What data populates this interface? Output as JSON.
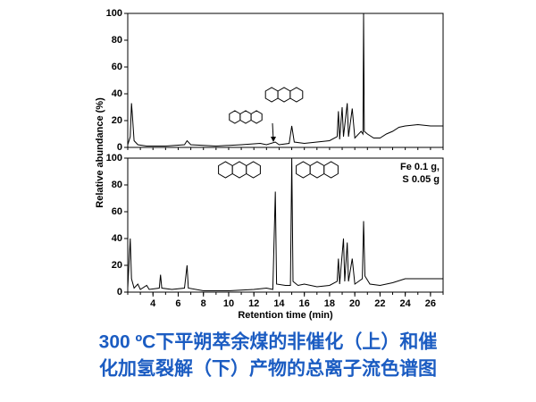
{
  "chart_data": [
    {
      "type": "line",
      "ylabel": "Relative abundance (%)",
      "x": [
        2.0,
        2.2,
        2.3,
        2.4,
        2.5,
        2.8,
        3.5,
        5.0,
        6.5,
        6.7,
        7.0,
        9.0,
        11.0,
        12.5,
        13.0,
        13.7,
        14.0,
        14.8,
        15.0,
        15.2,
        16.0,
        17.0,
        18.0,
        18.6,
        18.7,
        18.8,
        19.0,
        19.1,
        19.4,
        19.5,
        19.8,
        20.0,
        20.5,
        20.65,
        20.7,
        20.75,
        21.0,
        21.5,
        22.0,
        22.5,
        23.0,
        23.5,
        24.0,
        25.0,
        26.0,
        27.0
      ],
      "values": [
        2,
        8,
        33,
        20,
        5,
        2,
        1,
        1,
        2,
        5,
        2,
        1,
        2,
        3,
        2,
        4,
        2,
        3,
        16,
        4,
        3,
        4,
        5,
        8,
        27,
        6,
        30,
        8,
        33,
        8,
        29,
        7,
        12,
        10,
        100,
        12,
        10,
        7,
        7,
        10,
        12,
        15,
        16,
        17,
        16,
        16
      ],
      "color": "#000000",
      "xlim": [
        2,
        27
      ],
      "ylim": [
        0,
        100
      ],
      "yticks": [
        0,
        20,
        40,
        60,
        80,
        100
      ]
    },
    {
      "type": "line",
      "xlabel": "Retention time (min)",
      "annotations": [
        "Fe 0.1 g,",
        "S 0.05 g"
      ],
      "x": [
        2.0,
        2.2,
        2.3,
        2.5,
        2.8,
        3.0,
        3.5,
        3.7,
        4.5,
        4.6,
        4.7,
        5.5,
        6.5,
        6.7,
        6.8,
        8.0,
        10.0,
        12.0,
        13.0,
        13.5,
        13.7,
        13.8,
        14.5,
        14.9,
        15.0,
        15.1,
        15.5,
        16.0,
        17.0,
        18.0,
        18.6,
        18.7,
        18.8,
        19.1,
        19.2,
        19.4,
        19.5,
        19.8,
        20.0,
        20.6,
        20.7,
        20.8,
        21.2,
        22.0,
        23.0,
        24.0,
        25.0,
        27.0
      ],
      "values": [
        3,
        40,
        10,
        3,
        6,
        2,
        5,
        2,
        3,
        13,
        3,
        2,
        3,
        20,
        3,
        1,
        1,
        2,
        3,
        2,
        75,
        6,
        5,
        5,
        100,
        8,
        5,
        6,
        4,
        5,
        8,
        25,
        6,
        40,
        8,
        37,
        8,
        25,
        6,
        10,
        53,
        12,
        6,
        5,
        7,
        10,
        10,
        10
      ],
      "color": "#000000",
      "xlim": [
        2,
        27
      ],
      "ylim": [
        0,
        100
      ],
      "yticks": [
        0,
        20,
        40,
        60,
        80,
        100
      ],
      "xticks": [
        4,
        6,
        8,
        10,
        12,
        14,
        16,
        18,
        20,
        22,
        24,
        26
      ]
    }
  ],
  "caption": [
    "300 ºC下平朔萃余煤的非催化（上）和催",
    "化加氢裂解（下）产物的总离子流色谱图"
  ]
}
